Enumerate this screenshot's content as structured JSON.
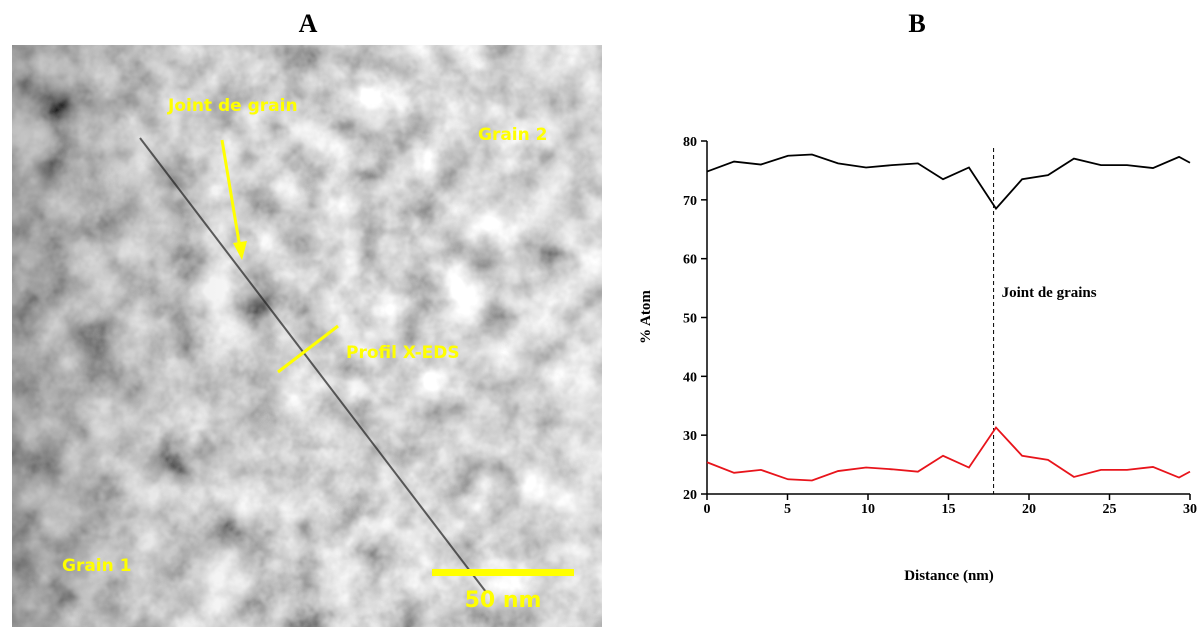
{
  "panel_a": {
    "title": "A",
    "labels": [
      "Joint de grain",
      "Grain 2",
      "Profil X-EDS",
      "Grain 1"
    ],
    "scale_bar": "50 nm"
  },
  "chart_data": {
    "type": "line",
    "title": "B",
    "xlabel": "Distance (nm)",
    "ylabel": "% Atom",
    "x": [
      0,
      1.68,
      3.35,
      5.03,
      6.52,
      8.14,
      9.88,
      11.49,
      13.1,
      14.66,
      16.27,
      17.95,
      19.57,
      21.18,
      22.79,
      24.47,
      26.09,
      27.7,
      29.32,
      30
    ],
    "series": [
      {
        "color": "#000000",
        "values": [
          74.8,
          76.5,
          76.0,
          77.5,
          77.7,
          76.2,
          75.5,
          75.9,
          76.2,
          73.5,
          75.5,
          68.5,
          73.5,
          74.2,
          77.0,
          75.9,
          75.9,
          75.4,
          77.3,
          76.3
        ]
      },
      {
        "color": "#e8141b",
        "values": [
          25.4,
          23.6,
          24.1,
          22.5,
          22.3,
          23.9,
          24.5,
          24.2,
          23.8,
          26.5,
          24.5,
          31.3,
          26.5,
          25.8,
          22.9,
          24.1,
          24.1,
          24.6,
          22.8,
          23.8
        ]
      }
    ],
    "xlim": [
      0,
      30
    ],
    "ylim": [
      20,
      80
    ],
    "xticks": [
      0,
      5,
      10,
      15,
      20,
      25,
      30
    ],
    "yticks": [
      20,
      30,
      40,
      50,
      60,
      70,
      80
    ],
    "annotation": {
      "text": "Joint de grains",
      "x": 17.8
    }
  }
}
